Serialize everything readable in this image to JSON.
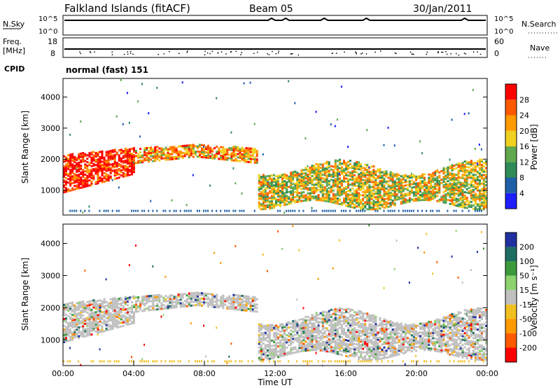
{
  "header": {
    "station": "Falkland Islands (fitACF)",
    "beam": "Beam 05",
    "date": "30/Jan/2011"
  },
  "colors": {
    "power": [
      "#1e1eff",
      "#1f5fa8",
      "#2e8b57",
      "#5fa84e",
      "#f0d020",
      "#ff9a00",
      "#ff5a00",
      "#ff0000"
    ],
    "velocity": [
      "#2030a0",
      "#1e6e64",
      "#3c9a3c",
      "#8cd26e",
      "#c0c0c0",
      "#f0c020",
      "#ff9a00",
      "#ff5a00",
      "#ff0000"
    ],
    "noise_line": "#000000"
  },
  "chart_data": [
    {
      "type": "line",
      "name": "noise-panel",
      "left_label": "N.Sky",
      "right_label": "N.Search",
      "left_ticks": [
        "10^5",
        "10^0"
      ],
      "right_ticks": [
        "10^5",
        "10^0"
      ]
    },
    {
      "type": "scatter",
      "name": "frequency-panel",
      "left_label_top": "Freq.",
      "left_label_bottom": "[MHz]",
      "right_label": "Nave",
      "left_ticks": [
        "18",
        "8"
      ],
      "right_ticks": [
        "60",
        "0"
      ]
    },
    {
      "type": "table",
      "name": "cpid-panel",
      "label": "CPID",
      "text": "normal (fast) 151"
    },
    {
      "type": "heatmap",
      "name": "power-panel",
      "ylabel": "Slant Range [km]",
      "ylim": [
        200,
        4600
      ],
      "yticks": [
        1000,
        2000,
        3000,
        4000
      ],
      "colorbar_label": "Power [dB]",
      "colorbar_ticks": [
        "4",
        "8",
        "12",
        "16",
        "20",
        "24",
        "28"
      ],
      "colorbar_range": [
        0,
        32
      ],
      "echo_bands": [
        {
          "t0": 0.0,
          "t1": 4.0,
          "r0": 900,
          "r1": 2300,
          "db": 28
        },
        {
          "t0": 4.0,
          "t1": 11.0,
          "r0": 2100,
          "r1": 2400,
          "db": 20
        },
        {
          "t0": 11.0,
          "t1": 24.0,
          "r0": 500,
          "r1": 1900,
          "db": 18
        }
      ]
    },
    {
      "type": "heatmap",
      "name": "velocity-panel",
      "ylabel": "Slant Range [km]",
      "xlabel": "Time UT",
      "ylim": [
        200,
        4600
      ],
      "yticks": [
        1000,
        2000,
        3000,
        4000
      ],
      "xticks": [
        "00:00",
        "04:00",
        "08:00",
        "12:00",
        "16:00",
        "20:00",
        "00:00"
      ],
      "xlim_hours": [
        0,
        24
      ],
      "colorbar_label": "Velocity [m s⁻¹]",
      "colorbar_ticks": [
        "200",
        "100",
        "50",
        "15",
        "-15",
        "-50",
        "-100",
        "-200"
      ],
      "colorbar_range": [
        -250,
        250
      ]
    }
  ]
}
